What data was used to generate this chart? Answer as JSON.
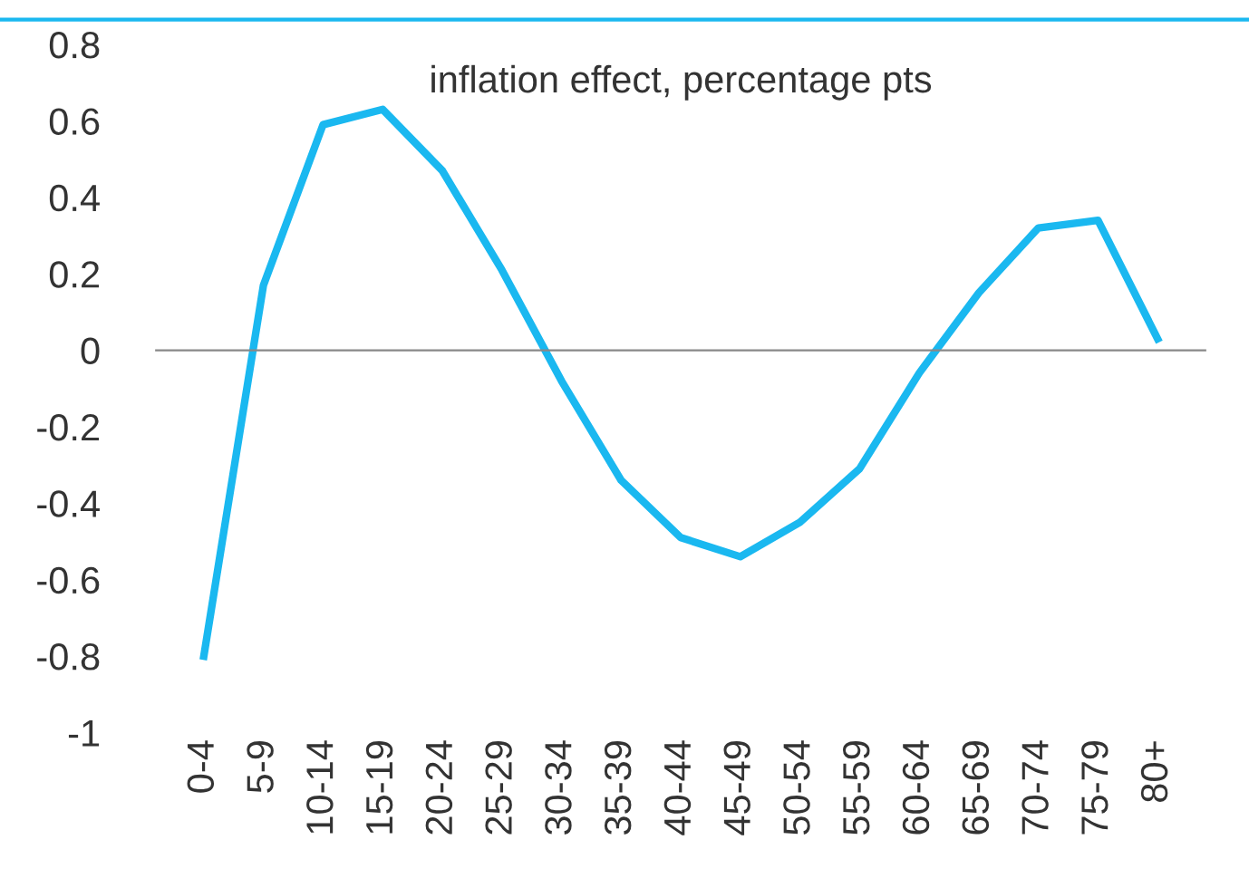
{
  "chart_data": {
    "type": "line",
    "title": "inflation effect, percentage pts",
    "categories": [
      "0-4",
      "5-9",
      "10-14",
      "15-19",
      "20-24",
      "25-29",
      "30-34",
      "35-39",
      "40-44",
      "45-49",
      "50-54",
      "55-59",
      "60-64",
      "65-69",
      "70-74",
      "75-79",
      "80+"
    ],
    "series": [
      {
        "color": "#1ab8f0",
        "values": [
          -0.8,
          0.17,
          0.59,
          0.63,
          0.47,
          0.21,
          -0.08,
          -0.34,
          -0.49,
          -0.54,
          -0.45,
          -0.31,
          -0.06,
          0.15,
          0.32,
          0.34,
          0.03
        ]
      }
    ],
    "ylim": [
      -1,
      0.8
    ],
    "yticks": [
      -1,
      -0.8,
      -0.6,
      -0.4,
      -0.2,
      0,
      0.2,
      0.4,
      0.6,
      0.8
    ],
    "marker": "none",
    "line_style": "solid"
  }
}
